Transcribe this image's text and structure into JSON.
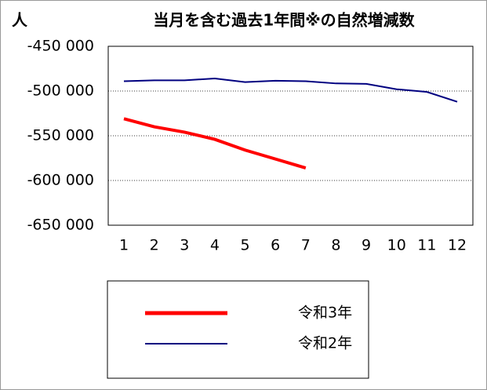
{
  "chart_data": {
    "type": "line",
    "title": "当月を含む過去1年間※の自然増減数",
    "y_label": "人",
    "categories": [
      "1",
      "2",
      "3",
      "4",
      "5",
      "6",
      "7",
      "8",
      "9",
      "10",
      "11",
      "12"
    ],
    "series": [
      {
        "name": "令和3年",
        "color": "#ff0000",
        "values": [
          -531000,
          -540000,
          -546000,
          -554000,
          -566000,
          -576000,
          -586000,
          null,
          null,
          null,
          null,
          null
        ]
      },
      {
        "name": "令和2年",
        "color": "#000080",
        "values": [
          -489000,
          -488000,
          -488000,
          -486000,
          -490000,
          -488500,
          -489000,
          -491500,
          -492000,
          -498000,
          -501000,
          -512000
        ]
      }
    ],
    "ylim": [
      -650000,
      -450000
    ],
    "yticks": [
      {
        "value": -650000,
        "label": "-650 000"
      },
      {
        "value": -600000,
        "label": "-600 000"
      },
      {
        "value": -550000,
        "label": "-550 000"
      },
      {
        "value": -500000,
        "label": "-500 000"
      },
      {
        "value": -450000,
        "label": "-450 000"
      }
    ],
    "grid": true
  }
}
